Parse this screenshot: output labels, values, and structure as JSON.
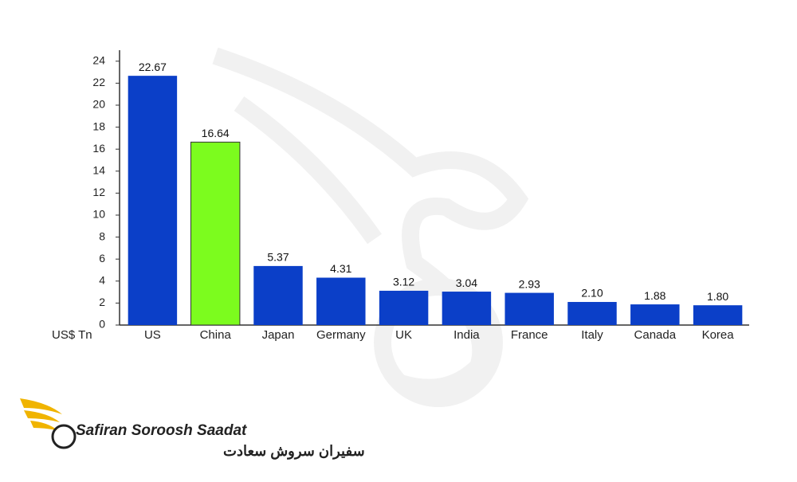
{
  "chart_data": {
    "type": "bar",
    "y_label": "US$ Tn",
    "categories": [
      "US",
      "China",
      "Japan",
      "Germany",
      "UK",
      "India",
      "France",
      "Italy",
      "Canada",
      "Korea"
    ],
    "values": [
      22.67,
      16.64,
      5.37,
      4.31,
      3.12,
      3.04,
      2.93,
      2.1,
      1.88,
      1.8
    ],
    "value_labels": [
      "22.67",
      "16.64",
      "5.37",
      "4.31",
      "3.12",
      "3.04",
      "2.93",
      "2.10",
      "1.88",
      "1.80"
    ],
    "colors": [
      "#0b3fc8",
      "#7cfc1e",
      "#0b3fc8",
      "#0b3fc8",
      "#0b3fc8",
      "#0b3fc8",
      "#0b3fc8",
      "#0b3fc8",
      "#0b3fc8",
      "#0b3fc8"
    ],
    "ylim": [
      0,
      25
    ],
    "yticks": [
      0,
      2,
      4,
      6,
      8,
      10,
      12,
      14,
      16,
      18,
      20,
      22,
      24
    ]
  },
  "logo": {
    "name": "Safiran Soroosh Saadat",
    "name_fa": "سفیران سروش سعادت"
  }
}
